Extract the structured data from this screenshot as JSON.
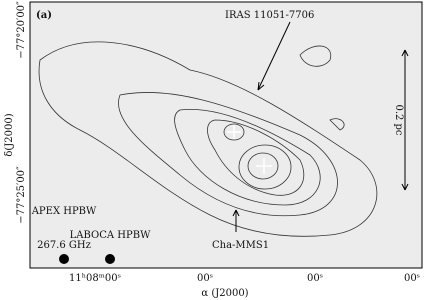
{
  "panel_label": "(a)",
  "annotations": {
    "source": "IRAS 11051-7706",
    "core": "Cha-MMS1",
    "scale_bar": "0.2 pc",
    "beam_apex": "APEX HPBW",
    "frequency": "267.6 GHz",
    "beam_laboca": "LABOCA HPBW"
  },
  "axes": {
    "y_label": "δ(J2000)",
    "x_label": "α (J2000)",
    "y_ticks": [
      "−77°20′00″",
      "−77°25′00″"
    ],
    "x_ticks": [
      "11ʰ08ᵐ00ˢ",
      "00ˢ",
      "00ˢ",
      "00ˢ"
    ]
  }
}
